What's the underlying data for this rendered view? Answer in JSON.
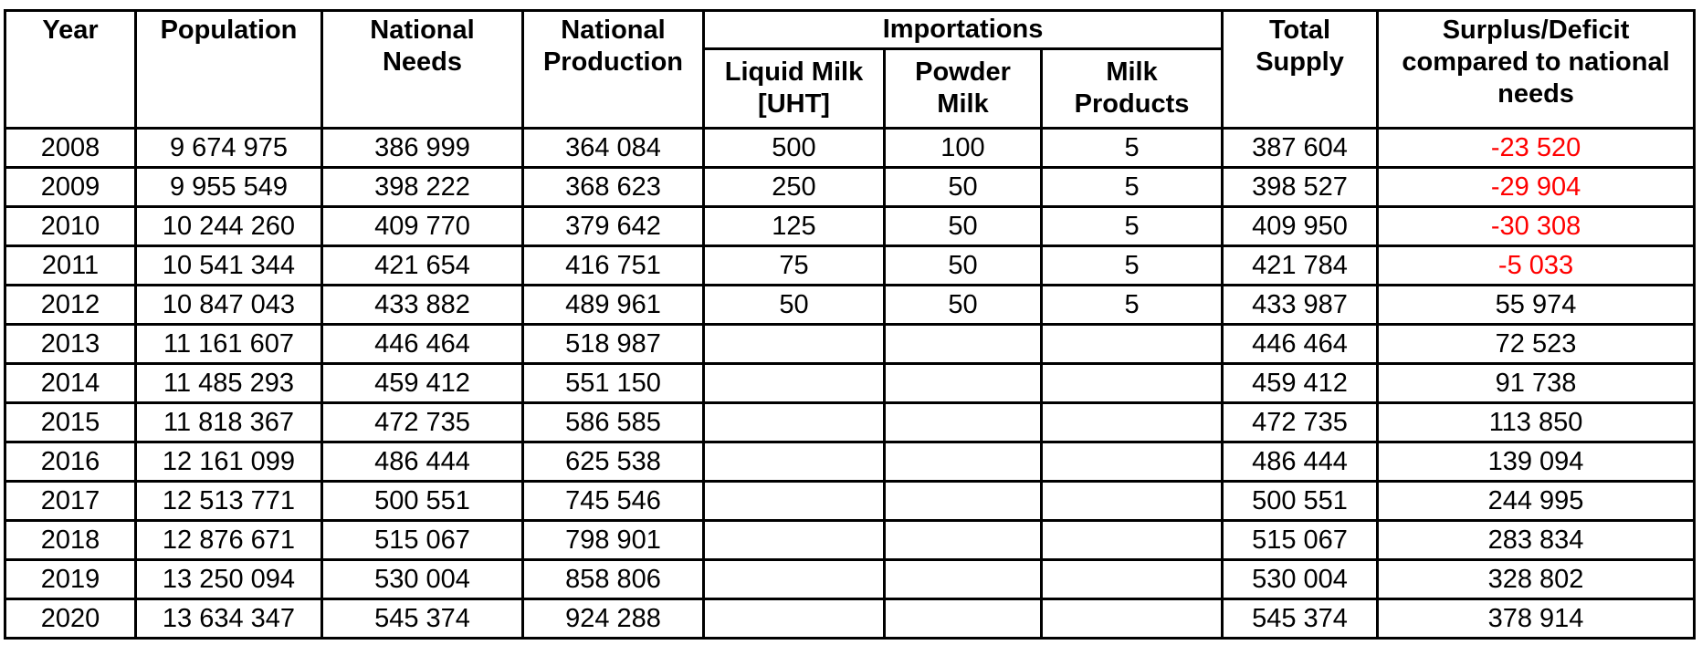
{
  "table": {
    "header": {
      "year": "Year",
      "population": "Population",
      "national_needs": "National\nNeeds",
      "national_production": "National\nProduction",
      "importations": "Importations",
      "liquid_milk": "Liquid Milk\n[UHT]",
      "powder_milk": "Powder\nMilk",
      "milk_products": "Milk\nProducts",
      "total_supply": "Total\nSupply",
      "surplus": "Surplus/Deficit\ncompared to national\nneeds"
    },
    "rows": [
      {
        "year": "2008",
        "population": "9 674 975",
        "national_needs": "386 999",
        "national_production": "364 084",
        "liquid_milk": "500",
        "powder_milk": "100",
        "milk_products": "5",
        "total_supply": "387 604",
        "surplus": "-23 520"
      },
      {
        "year": "2009",
        "population": "9 955 549",
        "national_needs": "398 222",
        "national_production": "368 623",
        "liquid_milk": "250",
        "powder_milk": "50",
        "milk_products": "5",
        "total_supply": "398 527",
        "surplus": "-29 904"
      },
      {
        "year": "2010",
        "population": "10 244 260",
        "national_needs": "409 770",
        "national_production": "379 642",
        "liquid_milk": "125",
        "powder_milk": "50",
        "milk_products": "5",
        "total_supply": "409 950",
        "surplus": "-30 308"
      },
      {
        "year": "2011",
        "population": "10 541 344",
        "national_needs": "421 654",
        "national_production": "416 751",
        "liquid_milk": "75",
        "powder_milk": "50",
        "milk_products": "5",
        "total_supply": "421 784",
        "surplus": "-5 033"
      },
      {
        "year": "2012",
        "population": "10 847 043",
        "national_needs": "433 882",
        "national_production": "489 961",
        "liquid_milk": "50",
        "powder_milk": "50",
        "milk_products": "5",
        "total_supply": "433 987",
        "surplus": "55 974"
      },
      {
        "year": "2013",
        "population": "11 161 607",
        "national_needs": "446 464",
        "national_production": "518 987",
        "liquid_milk": "",
        "powder_milk": "",
        "milk_products": "",
        "total_supply": "446 464",
        "surplus": "72 523"
      },
      {
        "year": "2014",
        "population": "11 485 293",
        "national_needs": "459 412",
        "national_production": "551 150",
        "liquid_milk": "",
        "powder_milk": "",
        "milk_products": "",
        "total_supply": "459 412",
        "surplus": "91 738"
      },
      {
        "year": "2015",
        "population": "11 818 367",
        "national_needs": "472 735",
        "national_production": "586 585",
        "liquid_milk": "",
        "powder_milk": "",
        "milk_products": "",
        "total_supply": "472 735",
        "surplus": "113 850"
      },
      {
        "year": "2016",
        "population": "12 161 099",
        "national_needs": "486 444",
        "national_production": "625 538",
        "liquid_milk": "",
        "powder_milk": "",
        "milk_products": "",
        "total_supply": "486 444",
        "surplus": "139 094"
      },
      {
        "year": "2017",
        "population": "12 513 771",
        "national_needs": "500 551",
        "national_production": "745 546",
        "liquid_milk": "",
        "powder_milk": "",
        "milk_products": "",
        "total_supply": "500 551",
        "surplus": "244 995"
      },
      {
        "year": "2018",
        "population": "12 876 671",
        "national_needs": "515 067",
        "national_production": "798 901",
        "liquid_milk": "",
        "powder_milk": "",
        "milk_products": "",
        "total_supply": "515 067",
        "surplus": "283 834"
      },
      {
        "year": "2019",
        "population": "13 250 094",
        "national_needs": "530 004",
        "national_production": "858 806",
        "liquid_milk": "",
        "powder_milk": "",
        "milk_products": "",
        "total_supply": "530 004",
        "surplus": "328 802"
      },
      {
        "year": "2020",
        "population": "13 634 347",
        "national_needs": "545 374",
        "national_production": "924 288",
        "liquid_milk": "",
        "powder_milk": "",
        "milk_products": "",
        "total_supply": "545 374",
        "surplus": "378 914"
      }
    ],
    "column_order": [
      "year",
      "population",
      "national_needs",
      "national_production",
      "liquid_milk",
      "powder_milk",
      "milk_products",
      "total_supply",
      "surplus"
    ]
  },
  "colors": {
    "negative_value": "#ff0000",
    "text": "#000000",
    "border": "#000000",
    "background": "#ffffff"
  }
}
